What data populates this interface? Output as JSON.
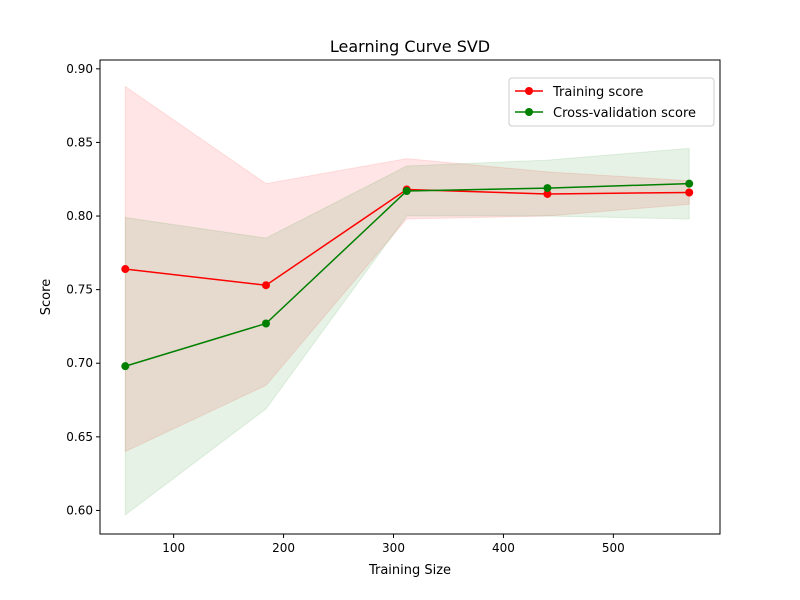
{
  "chart_data": {
    "type": "line",
    "title": "Learning Curve SVD",
    "xlabel": "Training Size",
    "ylabel": "Score",
    "xlim": [
      33,
      597
    ],
    "ylim": [
      0.584,
      0.906
    ],
    "xticks": [
      100,
      200,
      300,
      400,
      500
    ],
    "yticks": [
      0.6,
      0.65,
      0.7,
      0.75,
      0.8,
      0.85,
      0.9
    ],
    "xtick_labels": [
      "100",
      "200",
      "300",
      "400",
      "500"
    ],
    "ytick_labels": [
      "0.60",
      "0.65",
      "0.70",
      "0.75",
      "0.80",
      "0.85",
      "0.90"
    ],
    "grid": false,
    "legend_position": "top-right",
    "x": [
      56,
      184,
      312,
      440,
      569
    ],
    "series": [
      {
        "name": "Training score",
        "color": "#ff0000",
        "band_color": "#ff0000",
        "values": [
          0.764,
          0.753,
          0.818,
          0.815,
          0.816
        ],
        "lower": [
          0.64,
          0.685,
          0.798,
          0.8,
          0.808
        ],
        "upper": [
          0.888,
          0.822,
          0.839,
          0.83,
          0.824
        ]
      },
      {
        "name": "Cross-validation score",
        "color": "#008000",
        "band_color": "#008000",
        "values": [
          0.698,
          0.727,
          0.817,
          0.819,
          0.822
        ],
        "lower": [
          0.597,
          0.669,
          0.8,
          0.8,
          0.798
        ],
        "upper": [
          0.799,
          0.785,
          0.834,
          0.838,
          0.846
        ]
      }
    ]
  }
}
